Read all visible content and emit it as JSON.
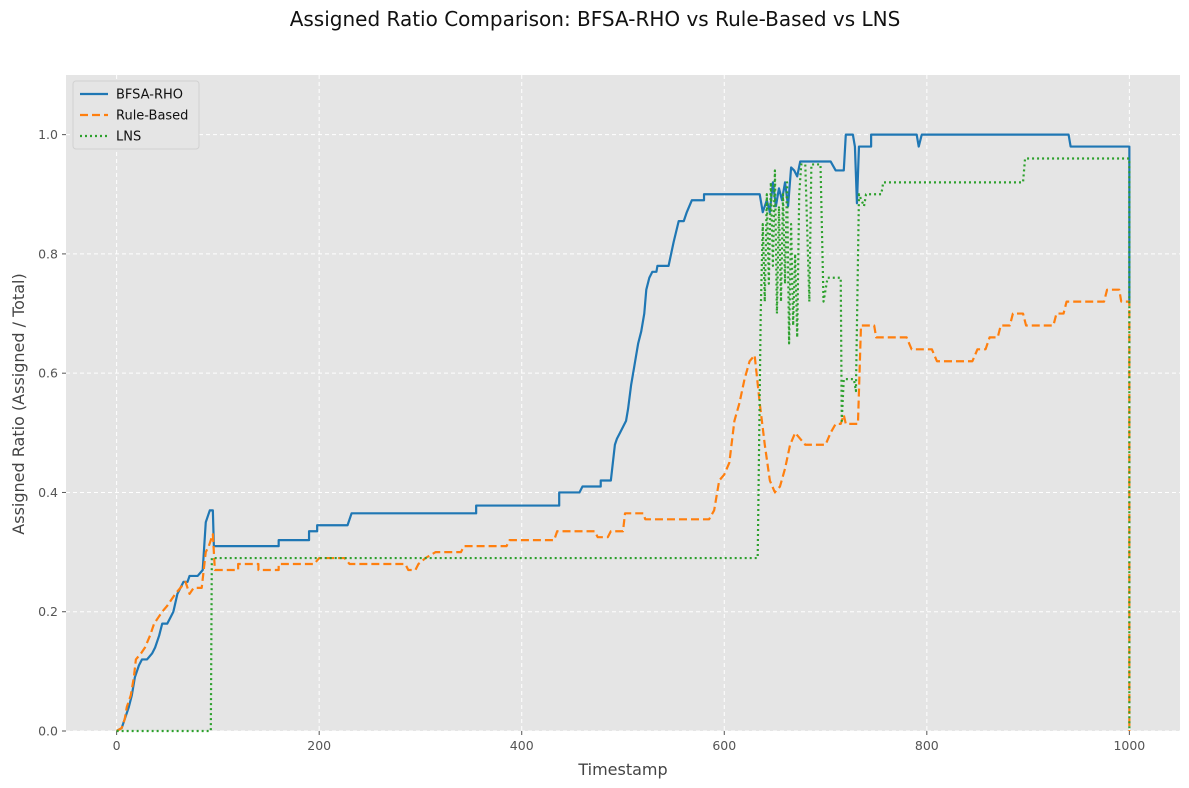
{
  "chart_data": {
    "type": "line",
    "title": "Assigned Ratio Comparison: BFSA-RHO vs Rule-Based vs LNS",
    "xlabel": "Timestamp",
    "ylabel": "Assigned Ratio (Assigned / Total)",
    "xlim": [
      -50,
      1050
    ],
    "ylim": [
      0,
      1.1
    ],
    "xticks": [
      0,
      200,
      400,
      600,
      800,
      1000
    ],
    "yticks": [
      0.0,
      0.2,
      0.4,
      0.6,
      0.8,
      1.0
    ],
    "xtick_labels": [
      "0",
      "200",
      "400",
      "600",
      "800",
      "1000"
    ],
    "ytick_labels": [
      "0.0",
      "0.2",
      "0.4",
      "0.6",
      "0.8",
      "1.0"
    ],
    "grid": true,
    "background": "#e5e5e5",
    "legend_position": "top-left",
    "series": [
      {
        "name": "BFSA-RHO",
        "color": "#1f77b4",
        "style": "solid",
        "points": [
          [
            0,
            0
          ],
          [
            5,
            0.005
          ],
          [
            8,
            0.02
          ],
          [
            12,
            0.04
          ],
          [
            15,
            0.06
          ],
          [
            18,
            0.09
          ],
          [
            20,
            0.1
          ],
          [
            22,
            0.11
          ],
          [
            25,
            0.12
          ],
          [
            30,
            0.12
          ],
          [
            35,
            0.13
          ],
          [
            38,
            0.14
          ],
          [
            42,
            0.16
          ],
          [
            45,
            0.18
          ],
          [
            50,
            0.18
          ],
          [
            53,
            0.19
          ],
          [
            56,
            0.2
          ],
          [
            60,
            0.23
          ],
          [
            63,
            0.24
          ],
          [
            66,
            0.25
          ],
          [
            70,
            0.25
          ],
          [
            72,
            0.26
          ],
          [
            80,
            0.26
          ],
          [
            85,
            0.27
          ],
          [
            88,
            0.35
          ],
          [
            90,
            0.36
          ],
          [
            92,
            0.37
          ],
          [
            95,
            0.37
          ],
          [
            96,
            0.31
          ],
          [
            100,
            0.31
          ],
          [
            160,
            0.31
          ],
          [
            160,
            0.32
          ],
          [
            190,
            0.32
          ],
          [
            190,
            0.335
          ],
          [
            198,
            0.335
          ],
          [
            198,
            0.345
          ],
          [
            228,
            0.345
          ],
          [
            232,
            0.365
          ],
          [
            355,
            0.365
          ],
          [
            355,
            0.378
          ],
          [
            437,
            0.378
          ],
          [
            437,
            0.4
          ],
          [
            457,
            0.4
          ],
          [
            460,
            0.41
          ],
          [
            478,
            0.41
          ],
          [
            478,
            0.42
          ],
          [
            488,
            0.42
          ],
          [
            490,
            0.45
          ],
          [
            492,
            0.48
          ],
          [
            494,
            0.49
          ],
          [
            497,
            0.5
          ],
          [
            500,
            0.51
          ],
          [
            503,
            0.52
          ],
          [
            505,
            0.54
          ],
          [
            508,
            0.58
          ],
          [
            510,
            0.6
          ],
          [
            512,
            0.62
          ],
          [
            515,
            0.65
          ],
          [
            518,
            0.67
          ],
          [
            521,
            0.7
          ],
          [
            523,
            0.74
          ],
          [
            526,
            0.76
          ],
          [
            529,
            0.77
          ],
          [
            533,
            0.77
          ],
          [
            534,
            0.78
          ],
          [
            545,
            0.78
          ],
          [
            550,
            0.82
          ],
          [
            555,
            0.855
          ],
          [
            560,
            0.855
          ],
          [
            563,
            0.87
          ],
          [
            568,
            0.89
          ],
          [
            580,
            0.89
          ],
          [
            580,
            0.9
          ],
          [
            635,
            0.9
          ],
          [
            638,
            0.87
          ],
          [
            642,
            0.89
          ],
          [
            645,
            0.87
          ],
          [
            648,
            0.92
          ],
          [
            651,
            0.88
          ],
          [
            654,
            0.91
          ],
          [
            657,
            0.89
          ],
          [
            660,
            0.92
          ],
          [
            663,
            0.88
          ],
          [
            666,
            0.945
          ],
          [
            669,
            0.94
          ],
          [
            672,
            0.93
          ],
          [
            675,
            0.955
          ],
          [
            690,
            0.955
          ],
          [
            705,
            0.955
          ],
          [
            710,
            0.94
          ],
          [
            718,
            0.94
          ],
          [
            720,
            1.0
          ],
          [
            727,
            1.0
          ],
          [
            729,
            0.98
          ],
          [
            731,
            0.885
          ],
          [
            733,
            0.98
          ],
          [
            745,
            0.98
          ],
          [
            745,
            1.0
          ],
          [
            790,
            1.0
          ],
          [
            792,
            0.98
          ],
          [
            795,
            1.0
          ],
          [
            940,
            1.0
          ],
          [
            942,
            0.98
          ],
          [
            1000,
            0.98
          ],
          [
            1000,
            0.72
          ]
        ]
      },
      {
        "name": "Rule-Based",
        "color": "#ff7f0e",
        "style": "dashed",
        "points": [
          [
            0,
            0
          ],
          [
            5,
            0.005
          ],
          [
            8,
            0.02
          ],
          [
            10,
            0.04
          ],
          [
            14,
            0.06
          ],
          [
            17,
            0.09
          ],
          [
            19,
            0.12
          ],
          [
            24,
            0.13
          ],
          [
            28,
            0.14
          ],
          [
            33,
            0.16
          ],
          [
            37,
            0.18
          ],
          [
            41,
            0.19
          ],
          [
            45,
            0.2
          ],
          [
            50,
            0.21
          ],
          [
            54,
            0.22
          ],
          [
            58,
            0.23
          ],
          [
            63,
            0.24
          ],
          [
            68,
            0.25
          ],
          [
            72,
            0.23
          ],
          [
            76,
            0.24
          ],
          [
            84,
            0.24
          ],
          [
            88,
            0.3
          ],
          [
            91,
            0.31
          ],
          [
            95,
            0.33
          ],
          [
            97,
            0.27
          ],
          [
            120,
            0.27
          ],
          [
            120,
            0.28
          ],
          [
            140,
            0.28
          ],
          [
            140,
            0.27
          ],
          [
            160,
            0.27
          ],
          [
            160,
            0.28
          ],
          [
            195,
            0.28
          ],
          [
            200,
            0.29
          ],
          [
            225,
            0.29
          ],
          [
            230,
            0.28
          ],
          [
            285,
            0.28
          ],
          [
            288,
            0.27
          ],
          [
            295,
            0.27
          ],
          [
            298,
            0.28
          ],
          [
            305,
            0.29
          ],
          [
            315,
            0.3
          ],
          [
            340,
            0.3
          ],
          [
            343,
            0.31
          ],
          [
            385,
            0.31
          ],
          [
            388,
            0.32
          ],
          [
            432,
            0.32
          ],
          [
            435,
            0.335
          ],
          [
            472,
            0.335
          ],
          [
            475,
            0.325
          ],
          [
            485,
            0.325
          ],
          [
            488,
            0.335
          ],
          [
            500,
            0.335
          ],
          [
            502,
            0.365
          ],
          [
            520,
            0.365
          ],
          [
            522,
            0.355
          ],
          [
            585,
            0.355
          ],
          [
            590,
            0.37
          ],
          [
            595,
            0.42
          ],
          [
            600,
            0.43
          ],
          [
            605,
            0.45
          ],
          [
            610,
            0.52
          ],
          [
            615,
            0.55
          ],
          [
            620,
            0.59
          ],
          [
            625,
            0.62
          ],
          [
            630,
            0.63
          ],
          [
            635,
            0.55
          ],
          [
            640,
            0.48
          ],
          [
            645,
            0.42
          ],
          [
            650,
            0.4
          ],
          [
            655,
            0.41
          ],
          [
            660,
            0.44
          ],
          [
            665,
            0.48
          ],
          [
            670,
            0.5
          ],
          [
            675,
            0.49
          ],
          [
            680,
            0.48
          ],
          [
            700,
            0.48
          ],
          [
            705,
            0.5
          ],
          [
            710,
            0.515
          ],
          [
            715,
            0.515
          ],
          [
            718,
            0.53
          ],
          [
            720,
            0.515
          ],
          [
            732,
            0.515
          ],
          [
            735,
            0.68
          ],
          [
            748,
            0.68
          ],
          [
            750,
            0.66
          ],
          [
            780,
            0.66
          ],
          [
            785,
            0.64
          ],
          [
            805,
            0.64
          ],
          [
            810,
            0.62
          ],
          [
            845,
            0.62
          ],
          [
            850,
            0.64
          ],
          [
            858,
            0.64
          ],
          [
            862,
            0.66
          ],
          [
            870,
            0.66
          ],
          [
            873,
            0.68
          ],
          [
            882,
            0.68
          ],
          [
            885,
            0.7
          ],
          [
            895,
            0.7
          ],
          [
            898,
            0.68
          ],
          [
            925,
            0.68
          ],
          [
            928,
            0.7
          ],
          [
            935,
            0.7
          ],
          [
            938,
            0.72
          ],
          [
            975,
            0.72
          ],
          [
            978,
            0.74
          ],
          [
            990,
            0.74
          ],
          [
            992,
            0.72
          ],
          [
            1000,
            0.72
          ],
          [
            1000,
            0
          ]
        ]
      },
      {
        "name": "LNS",
        "color": "#2ca02c",
        "style": "dotted",
        "points": [
          [
            0,
            0
          ],
          [
            93,
            0
          ],
          [
            94,
            0.29
          ],
          [
            633,
            0.29
          ],
          [
            636,
            0.7
          ],
          [
            638,
            0.85
          ],
          [
            640,
            0.72
          ],
          [
            642,
            0.9
          ],
          [
            644,
            0.75
          ],
          [
            646,
            0.92
          ],
          [
            648,
            0.78
          ],
          [
            650,
            0.94
          ],
          [
            652,
            0.7
          ],
          [
            654,
            0.88
          ],
          [
            656,
            0.72
          ],
          [
            658,
            0.9
          ],
          [
            660,
            0.75
          ],
          [
            662,
            0.92
          ],
          [
            664,
            0.65
          ],
          [
            666,
            0.85
          ],
          [
            668,
            0.68
          ],
          [
            670,
            0.8
          ],
          [
            672,
            0.66
          ],
          [
            674,
            0.9
          ],
          [
            676,
            0.95
          ],
          [
            680,
            0.95
          ],
          [
            684,
            0.72
          ],
          [
            686,
            0.95
          ],
          [
            695,
            0.95
          ],
          [
            698,
            0.72
          ],
          [
            702,
            0.76
          ],
          [
            715,
            0.76
          ],
          [
            716,
            0.52
          ],
          [
            718,
            0.59
          ],
          [
            728,
            0.59
          ],
          [
            730,
            0.57
          ],
          [
            733,
            0.9
          ],
          [
            738,
            0.88
          ],
          [
            740,
            0.9
          ],
          [
            755,
            0.9
          ],
          [
            757,
            0.92
          ],
          [
            895,
            0.92
          ],
          [
            897,
            0.96
          ],
          [
            1000,
            0.96
          ],
          [
            1000,
            0
          ]
        ]
      }
    ]
  }
}
